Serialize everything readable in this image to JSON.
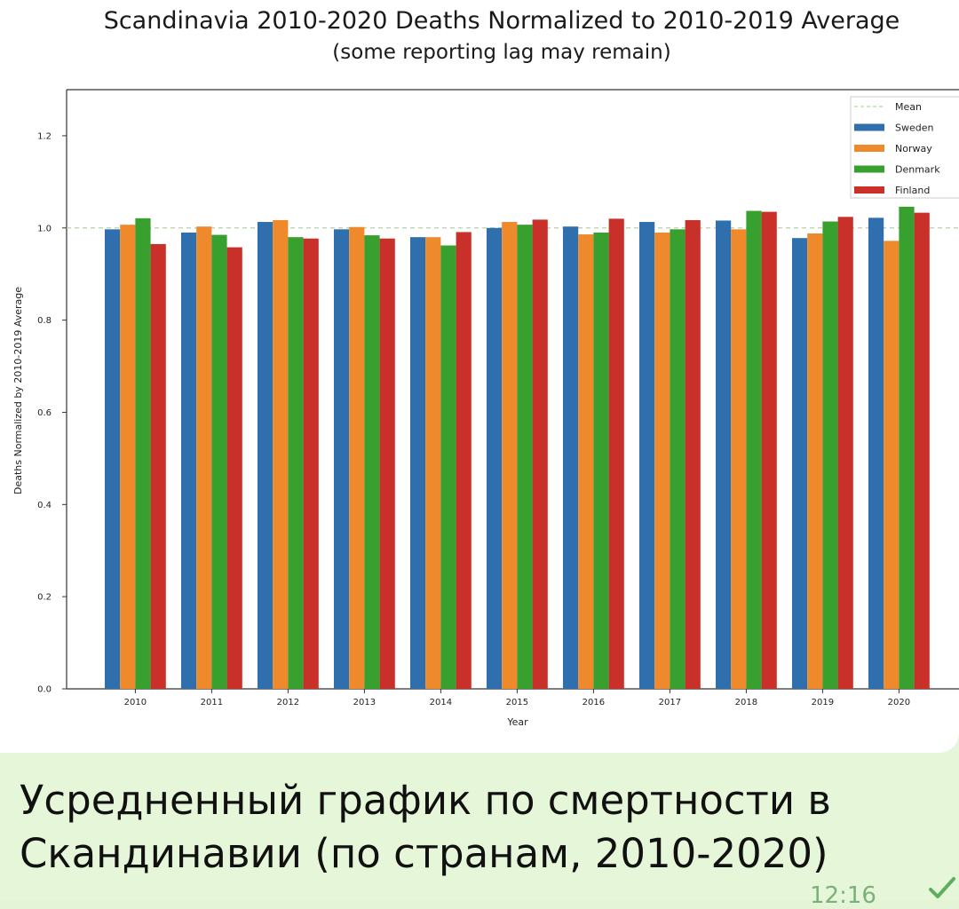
{
  "message": {
    "caption": "Усредненный график по смертности в Скандинавии (по странам, 2010-2020)",
    "time": "12:16",
    "status_icon": "check-icon"
  },
  "chart_data": {
    "type": "bar",
    "title": "Scandinavia 2010-2020 Deaths Normalized to 2010-2019 Average",
    "subtitle": "(some reporting lag may remain)",
    "xlabel": "Year",
    "ylabel": "Deaths Normalized by 2010-2019 Average",
    "ylim": [
      0,
      1.3
    ],
    "yticks": [
      "0.0",
      "0.2",
      "0.4",
      "0.6",
      "0.8",
      "1.0",
      "1.2"
    ],
    "categories": [
      "2010",
      "2011",
      "2012",
      "2013",
      "2014",
      "2015",
      "2016",
      "2017",
      "2018",
      "2019",
      "2020"
    ],
    "mean_line": {
      "name": "Mean",
      "value": 1.0,
      "color": "#b5d3a8"
    },
    "series": [
      {
        "name": "Sweden",
        "color": "#2f6fad",
        "values": [
          0.997,
          0.99,
          1.013,
          0.997,
          0.98,
          1.0,
          1.003,
          1.013,
          1.016,
          0.978,
          1.022
        ]
      },
      {
        "name": "Norway",
        "color": "#ef8a2c",
        "values": [
          1.007,
          1.003,
          1.017,
          1.002,
          0.98,
          1.013,
          0.986,
          0.99,
          0.997,
          0.988,
          0.972
        ]
      },
      {
        "name": "Denmark",
        "color": "#37a02e",
        "values": [
          1.021,
          0.985,
          0.98,
          0.984,
          0.962,
          1.007,
          0.99,
          0.997,
          1.037,
          1.014,
          1.046
        ]
      },
      {
        "name": "Finland",
        "color": "#c9302a",
        "values": [
          0.965,
          0.958,
          0.977,
          0.977,
          0.991,
          1.018,
          1.02,
          1.017,
          1.035,
          1.024,
          1.033
        ]
      }
    ],
    "legend": "top-right",
    "grid": false
  }
}
